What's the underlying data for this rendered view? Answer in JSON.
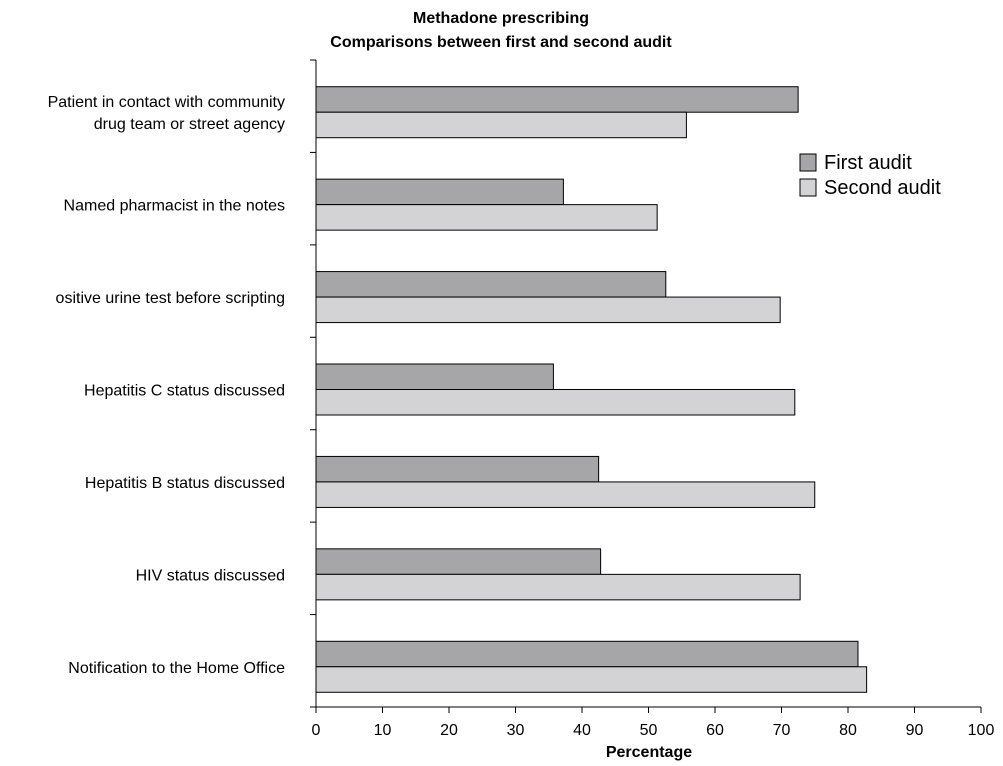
{
  "chart_data": {
    "type": "bar",
    "orientation": "horizontal",
    "title": "Methadone prescribing",
    "subtitle": "Comparisons between first and second audit",
    "xlabel": "Percentage",
    "ylabel": "",
    "xlim": [
      0,
      100
    ],
    "xticks": [
      0,
      10,
      20,
      30,
      40,
      50,
      60,
      70,
      80,
      90,
      100
    ],
    "grid": false,
    "legend_position": "right",
    "categories": [
      [
        "Patient in contact with community",
        "drug team or street agency"
      ],
      [
        "Named pharmacist in the notes"
      ],
      [
        "ositive urine test before scripting"
      ],
      [
        "Hepatitis C status discussed"
      ],
      [
        "Hepatitis B status discussed"
      ],
      [
        "HIV status discussed"
      ],
      [
        "Notification to the Home Office"
      ]
    ],
    "series": [
      {
        "name": "First audit",
        "color": "#a6a6a9",
        "values": [
          72.5,
          37.2,
          52.6,
          35.7,
          42.5,
          42.8,
          81.5
        ]
      },
      {
        "name": "Second audit",
        "color": "#d3d3d5",
        "values": [
          55.7,
          51.3,
          69.8,
          72.0,
          75.0,
          72.8,
          82.8
        ]
      }
    ]
  }
}
